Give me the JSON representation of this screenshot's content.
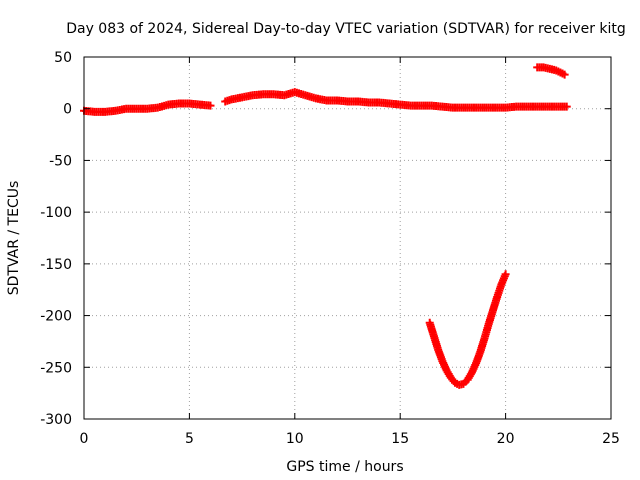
{
  "chart_data": {
    "type": "scatter",
    "title": "Day 083 of 2024, Sidereal Day-to-day VTEC variation (SDTVAR) for receiver kitg",
    "xlabel": "GPS time / hours",
    "ylabel": "SDTVAR / TECUs",
    "xlim": [
      0,
      25
    ],
    "ylim": [
      -300,
      50
    ],
    "xticks": [
      0,
      5,
      10,
      15,
      20,
      25
    ],
    "yticks": [
      50,
      0,
      -50,
      -100,
      -150,
      -200,
      -250,
      -300
    ],
    "xtick_labels": [
      "0",
      "5",
      "10",
      "15",
      "20",
      "25"
    ],
    "ytick_labels": [
      "50",
      "0",
      "-50",
      "-100",
      "-150",
      "-200",
      "-250",
      "-300"
    ],
    "grid": true,
    "legend": "none",
    "marker": "plus",
    "series": [
      {
        "color": "#ff0000",
        "x": [
          0.0,
          0.5,
          1.0,
          1.5,
          2.0,
          2.5,
          3.0,
          3.5,
          4.0,
          4.5,
          5.0,
          5.5,
          6.0,
          6.7,
          7.0,
          7.5,
          8.0,
          8.5,
          9.0,
          9.5,
          10.0,
          10.5,
          11.0,
          11.5,
          12.0,
          12.5,
          13.0,
          13.5,
          14.0,
          14.5,
          15.0,
          15.5,
          16.0,
          16.5,
          17.0,
          17.5,
          18.0,
          18.5,
          19.0,
          19.5,
          20.0,
          20.5,
          21.0,
          21.5,
          22.0,
          22.5,
          22.9
        ],
        "y": [
          -2,
          -3,
          -3,
          -2,
          0,
          0,
          0,
          1,
          4,
          5,
          5,
          4,
          3,
          7,
          9,
          11,
          13,
          14,
          14,
          13,
          16,
          13,
          10,
          8,
          8,
          7,
          7,
          6,
          6,
          5,
          4,
          3,
          3,
          3,
          2,
          1,
          1,
          1,
          1,
          1,
          1,
          2,
          2,
          2,
          2,
          2,
          2
        ]
      },
      {
        "color": "#ff0000",
        "x": [
          21.5,
          21.8,
          22.0,
          22.2,
          22.4,
          22.6,
          22.8
        ],
        "y": [
          40,
          40,
          39,
          38,
          37,
          35,
          33
        ]
      },
      {
        "color": "#ff0000",
        "x": [
          16.4,
          16.6,
          16.8,
          17.0,
          17.2,
          17.4,
          17.6,
          17.8,
          18.0,
          18.2,
          18.4,
          18.6,
          18.8,
          19.0,
          19.2,
          19.4,
          19.6,
          19.8,
          20.0
        ],
        "y": [
          -207,
          -220,
          -233,
          -244,
          -253,
          -260,
          -265,
          -267,
          -266,
          -262,
          -255,
          -246,
          -235,
          -222,
          -208,
          -195,
          -182,
          -170,
          -160
        ]
      }
    ]
  }
}
